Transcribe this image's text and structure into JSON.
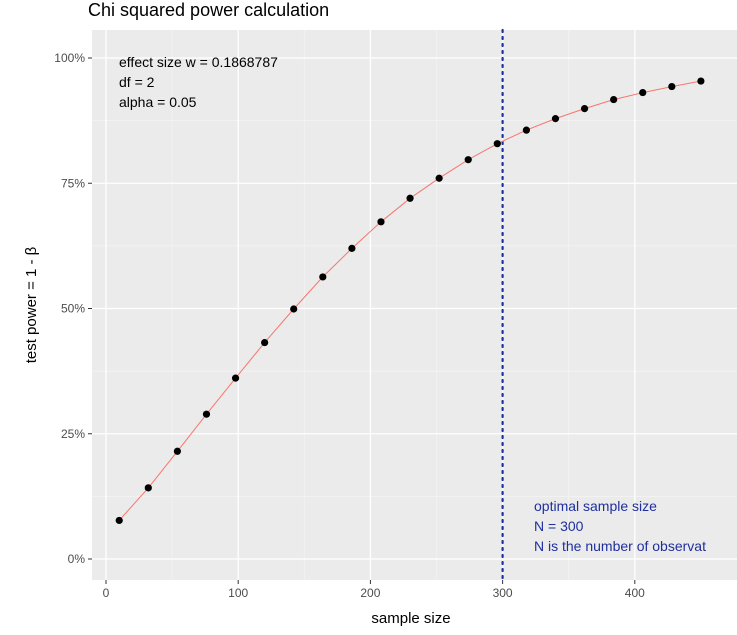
{
  "chart_data": {
    "type": "line",
    "title": "Chi squared power calculation",
    "xlabel": "sample size",
    "ylabel": "test power = 1 - β",
    "xlim": [
      -10,
      460
    ],
    "ylim": [
      0,
      1
    ],
    "x_ticks": [
      0,
      100,
      200,
      300,
      400
    ],
    "x_tick_labels": [
      "0",
      "100",
      "200",
      "300",
      "400"
    ],
    "y_ticks": [
      0,
      0.25,
      0.5,
      0.75,
      1.0
    ],
    "y_tick_labels": [
      "0%",
      "25%",
      "50%",
      "75%",
      "100%"
    ],
    "grid": true,
    "info_lines": [
      "effect size w = 0.1868787",
      "df = 2",
      "alpha = 0.05"
    ],
    "vline": {
      "x": 300,
      "style": "dotted",
      "color": "#1f2f9e"
    },
    "annotation_lines": [
      "optimal sample size",
      "N = 300",
      "N is the number of observat"
    ],
    "series": [
      {
        "color": "#f8766d",
        "point_color": "#000000",
        "x": [
          10,
          32,
          54,
          76,
          98,
          120,
          142,
          164,
          186,
          208,
          230,
          252,
          274,
          296,
          318,
          340,
          362,
          384,
          406,
          428,
          450
        ],
        "y": [
          0.077,
          0.142,
          0.215,
          0.289,
          0.361,
          0.432,
          0.499,
          0.563,
          0.62,
          0.673,
          0.72,
          0.76,
          0.797,
          0.829,
          0.856,
          0.879,
          0.899,
          0.917,
          0.931,
          0.943,
          0.954
        ]
      }
    ]
  }
}
